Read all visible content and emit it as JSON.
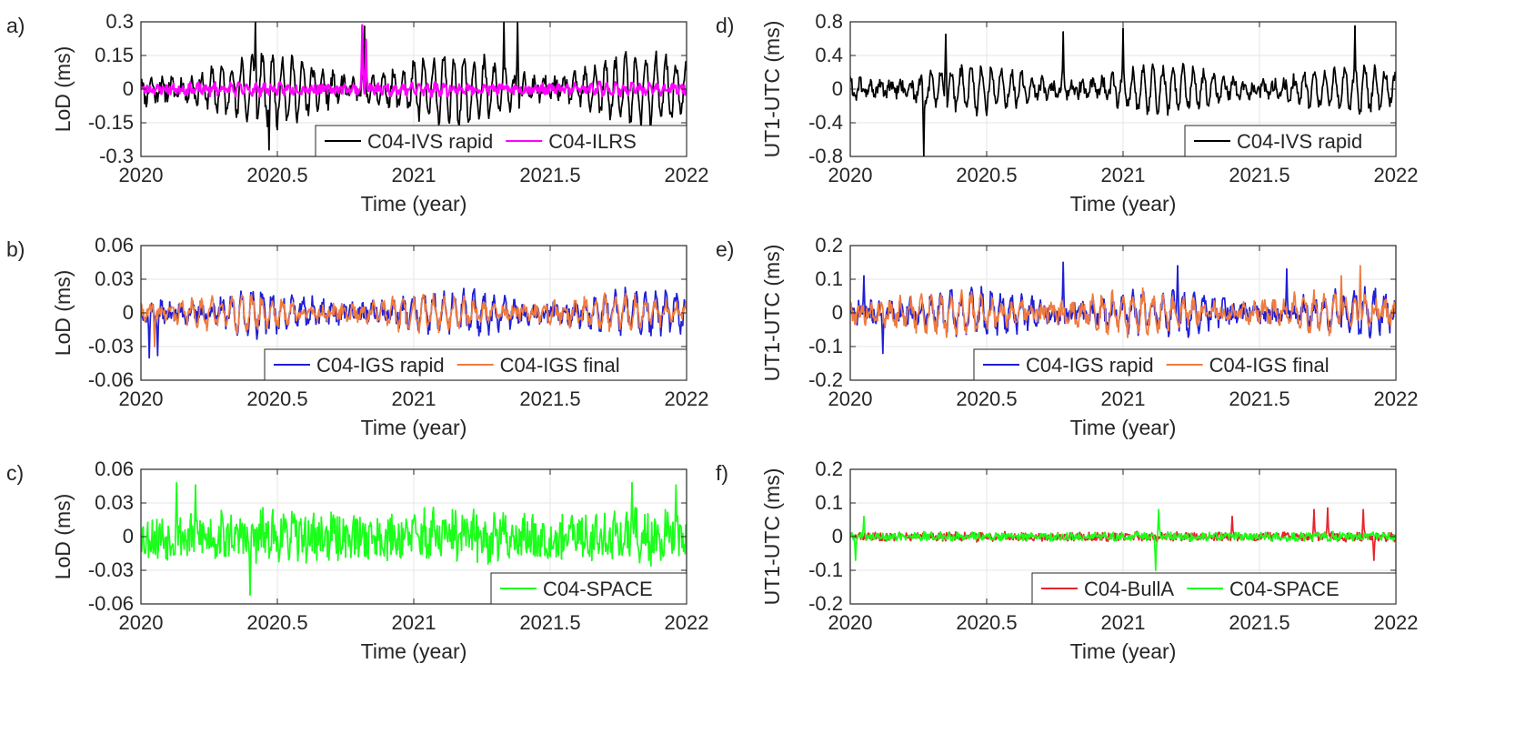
{
  "chart_data": [
    {
      "type": "line",
      "panel": "a)",
      "ylabel": "LoD (ms)",
      "xlabel": "Time (year)",
      "xlim": [
        2020,
        2022
      ],
      "ylim": [
        -0.3,
        0.3
      ],
      "xticks": [
        2020,
        2020.5,
        2021,
        2021.5,
        2022
      ],
      "xtick_labels": [
        "2020",
        "2020.5",
        "2021",
        "2021.5",
        "2022"
      ],
      "yticks": [
        -0.3,
        -0.15,
        0,
        0.15,
        0.3
      ],
      "ytick_labels": [
        "-0.3",
        "-0.15",
        "0",
        "0.15",
        "0.3"
      ],
      "legend": "bottom-right",
      "series": [
        {
          "name": "C04-IVS rapid",
          "color": "#000000",
          "amplitude": 0.15,
          "period": 0.037,
          "noise": 0.035,
          "seed": 11,
          "spikes": [
            [
              2020.42,
              0.3
            ],
            [
              2020.47,
              -0.27
            ],
            [
              2020.82,
              0.28
            ],
            [
              2021.33,
              0.3
            ],
            [
              2021.38,
              0.3
            ]
          ]
        },
        {
          "name": "C04-ILRS",
          "color": "#ff00ff",
          "amplitude": 0.018,
          "period": 0.03,
          "noise": 0.02,
          "seed": 23,
          "spikes": [
            [
              2020.81,
              0.285
            ],
            [
              2020.825,
              0.22
            ]
          ]
        }
      ]
    },
    {
      "type": "line",
      "panel": "b)",
      "ylabel": "LoD (ms)",
      "xlabel": "Time (year)",
      "xlim": [
        2020,
        2022
      ],
      "ylim": [
        -0.06,
        0.06
      ],
      "xticks": [
        2020,
        2020.5,
        2021,
        2021.5,
        2022
      ],
      "xtick_labels": [
        "2020",
        "2020.5",
        "2021",
        "2021.5",
        "2022"
      ],
      "yticks": [
        -0.06,
        -0.03,
        0,
        0.03,
        0.06
      ],
      "ytick_labels": [
        "-0.06",
        "-0.03",
        "0",
        "0.03",
        "0.06"
      ],
      "legend": "bottom-right",
      "series": [
        {
          "name": "C04-IGS rapid",
          "color": "#1f1fd6",
          "amplitude": 0.016,
          "period": 0.037,
          "noise": 0.008,
          "seed": 37,
          "spikes": [
            [
              2020.03,
              -0.04
            ],
            [
              2020.06,
              -0.038
            ]
          ]
        },
        {
          "name": "C04-IGS final",
          "color": "#f07b3f",
          "amplitude": 0.013,
          "period": 0.037,
          "noise": 0.006,
          "seed": 41,
          "spikes": [
            [
              2020.05,
              -0.03
            ]
          ]
        }
      ]
    },
    {
      "type": "line",
      "panel": "c)",
      "ylabel": "LoD (ms)",
      "xlabel": "Time (year)",
      "xlim": [
        2020,
        2022
      ],
      "ylim": [
        -0.06,
        0.06
      ],
      "xticks": [
        2020,
        2020.5,
        2021,
        2021.5,
        2022
      ],
      "xtick_labels": [
        "2020",
        "2020.5",
        "2021",
        "2021.5",
        "2022"
      ],
      "yticks": [
        -0.06,
        -0.03,
        0,
        0.03,
        0.06
      ],
      "ytick_labels": [
        "-0.06",
        "-0.03",
        "0",
        "0.03",
        "0.06"
      ],
      "legend": "bottom-right",
      "series": [
        {
          "name": "C04-SPACE",
          "color": "#1aff1a",
          "amplitude": 0.008,
          "period": 0.037,
          "noise": 0.02,
          "seed": 53,
          "spikes": [
            [
              2020.13,
              0.048
            ],
            [
              2020.2,
              0.046
            ],
            [
              2020.4,
              -0.052
            ],
            [
              2021.8,
              0.048
            ],
            [
              2021.96,
              0.046
            ]
          ]
        }
      ]
    },
    {
      "type": "line",
      "panel": "d)",
      "ylabel": "UT1-UTC (ms)",
      "xlabel": "Time (year)",
      "xlim": [
        2020,
        2022
      ],
      "ylim": [
        -0.8,
        0.8
      ],
      "xticks": [
        2020,
        2020.5,
        2021,
        2021.5,
        2022
      ],
      "xtick_labels": [
        "2020",
        "2020.5",
        "2021",
        "2021.5",
        "2022"
      ],
      "yticks": [
        -0.8,
        -0.4,
        0,
        0.4,
        0.8
      ],
      "ytick_labels": [
        "-0.8",
        "-0.4",
        "0",
        "0.4",
        "0.8"
      ],
      "legend": "bottom-right",
      "series": [
        {
          "name": "C04-IVS rapid",
          "color": "#000000",
          "amplitude": 0.25,
          "period": 0.037,
          "noise": 0.08,
          "seed": 61,
          "spikes": [
            [
              2020.27,
              -0.8
            ],
            [
              2020.35,
              0.65
            ],
            [
              2020.78,
              0.68
            ],
            [
              2021.0,
              0.72
            ],
            [
              2021.85,
              0.75
            ]
          ]
        }
      ]
    },
    {
      "type": "line",
      "panel": "e)",
      "ylabel": "UT1-UTC (ms)",
      "xlabel": "Time (year)",
      "xlim": [
        2020,
        2022
      ],
      "ylim": [
        -0.2,
        0.2
      ],
      "xticks": [
        2020,
        2020.5,
        2021,
        2021.5,
        2022
      ],
      "xtick_labels": [
        "2020",
        "2020.5",
        "2021",
        "2021.5",
        "2022"
      ],
      "yticks": [
        -0.2,
        -0.1,
        0,
        0.1,
        0.2
      ],
      "ytick_labels": [
        "-0.2",
        "-0.1",
        "0",
        "0.1",
        "0.2"
      ],
      "legend": "bottom-right",
      "series": [
        {
          "name": "C04-IGS rapid",
          "color": "#1f1fd6",
          "amplitude": 0.05,
          "period": 0.037,
          "noise": 0.03,
          "seed": 71,
          "spikes": [
            [
              2020.05,
              0.11
            ],
            [
              2020.78,
              0.15
            ],
            [
              2021.2,
              0.14
            ],
            [
              2021.6,
              0.13
            ],
            [
              2020.12,
              -0.12
            ]
          ]
        },
        {
          "name": "C04-IGS final",
          "color": "#f07b3f",
          "amplitude": 0.05,
          "period": 0.037,
          "noise": 0.025,
          "seed": 79,
          "spikes": [
            [
              2021.87,
              0.14
            ],
            [
              2021.8,
              0.11
            ]
          ]
        }
      ]
    },
    {
      "type": "line",
      "panel": "f)",
      "ylabel": "UT1-UTC (ms)",
      "xlabel": "Time (year)",
      "xlim": [
        2020,
        2022
      ],
      "ylim": [
        -0.2,
        0.2
      ],
      "xticks": [
        2020,
        2020.5,
        2021,
        2021.5,
        2022
      ],
      "xtick_labels": [
        "2020",
        "2020.5",
        "2021",
        "2021.5",
        "2022"
      ],
      "yticks": [
        -0.2,
        -0.1,
        0,
        0.1,
        0.2
      ],
      "ytick_labels": [
        "-0.2",
        "-0.1",
        "0",
        "0.1",
        "0.2"
      ],
      "legend": "bottom-right",
      "series": [
        {
          "name": "C04-BullA",
          "color": "#e8242b",
          "amplitude": 0.004,
          "period": 0.03,
          "noise": 0.012,
          "seed": 83,
          "spikes": [
            [
              2021.7,
              0.08
            ],
            [
              2021.75,
              0.085
            ],
            [
              2021.88,
              0.08
            ],
            [
              2021.92,
              -0.07
            ],
            [
              2021.4,
              0.06
            ]
          ]
        },
        {
          "name": "C04-SPACE",
          "color": "#1aff1a",
          "amplitude": 0.004,
          "period": 0.03,
          "noise": 0.012,
          "seed": 89,
          "spikes": [
            [
              2021.13,
              0.08
            ],
            [
              2021.12,
              -0.1
            ],
            [
              2020.02,
              -0.07
            ],
            [
              2020.05,
              0.06
            ]
          ]
        }
      ]
    }
  ]
}
